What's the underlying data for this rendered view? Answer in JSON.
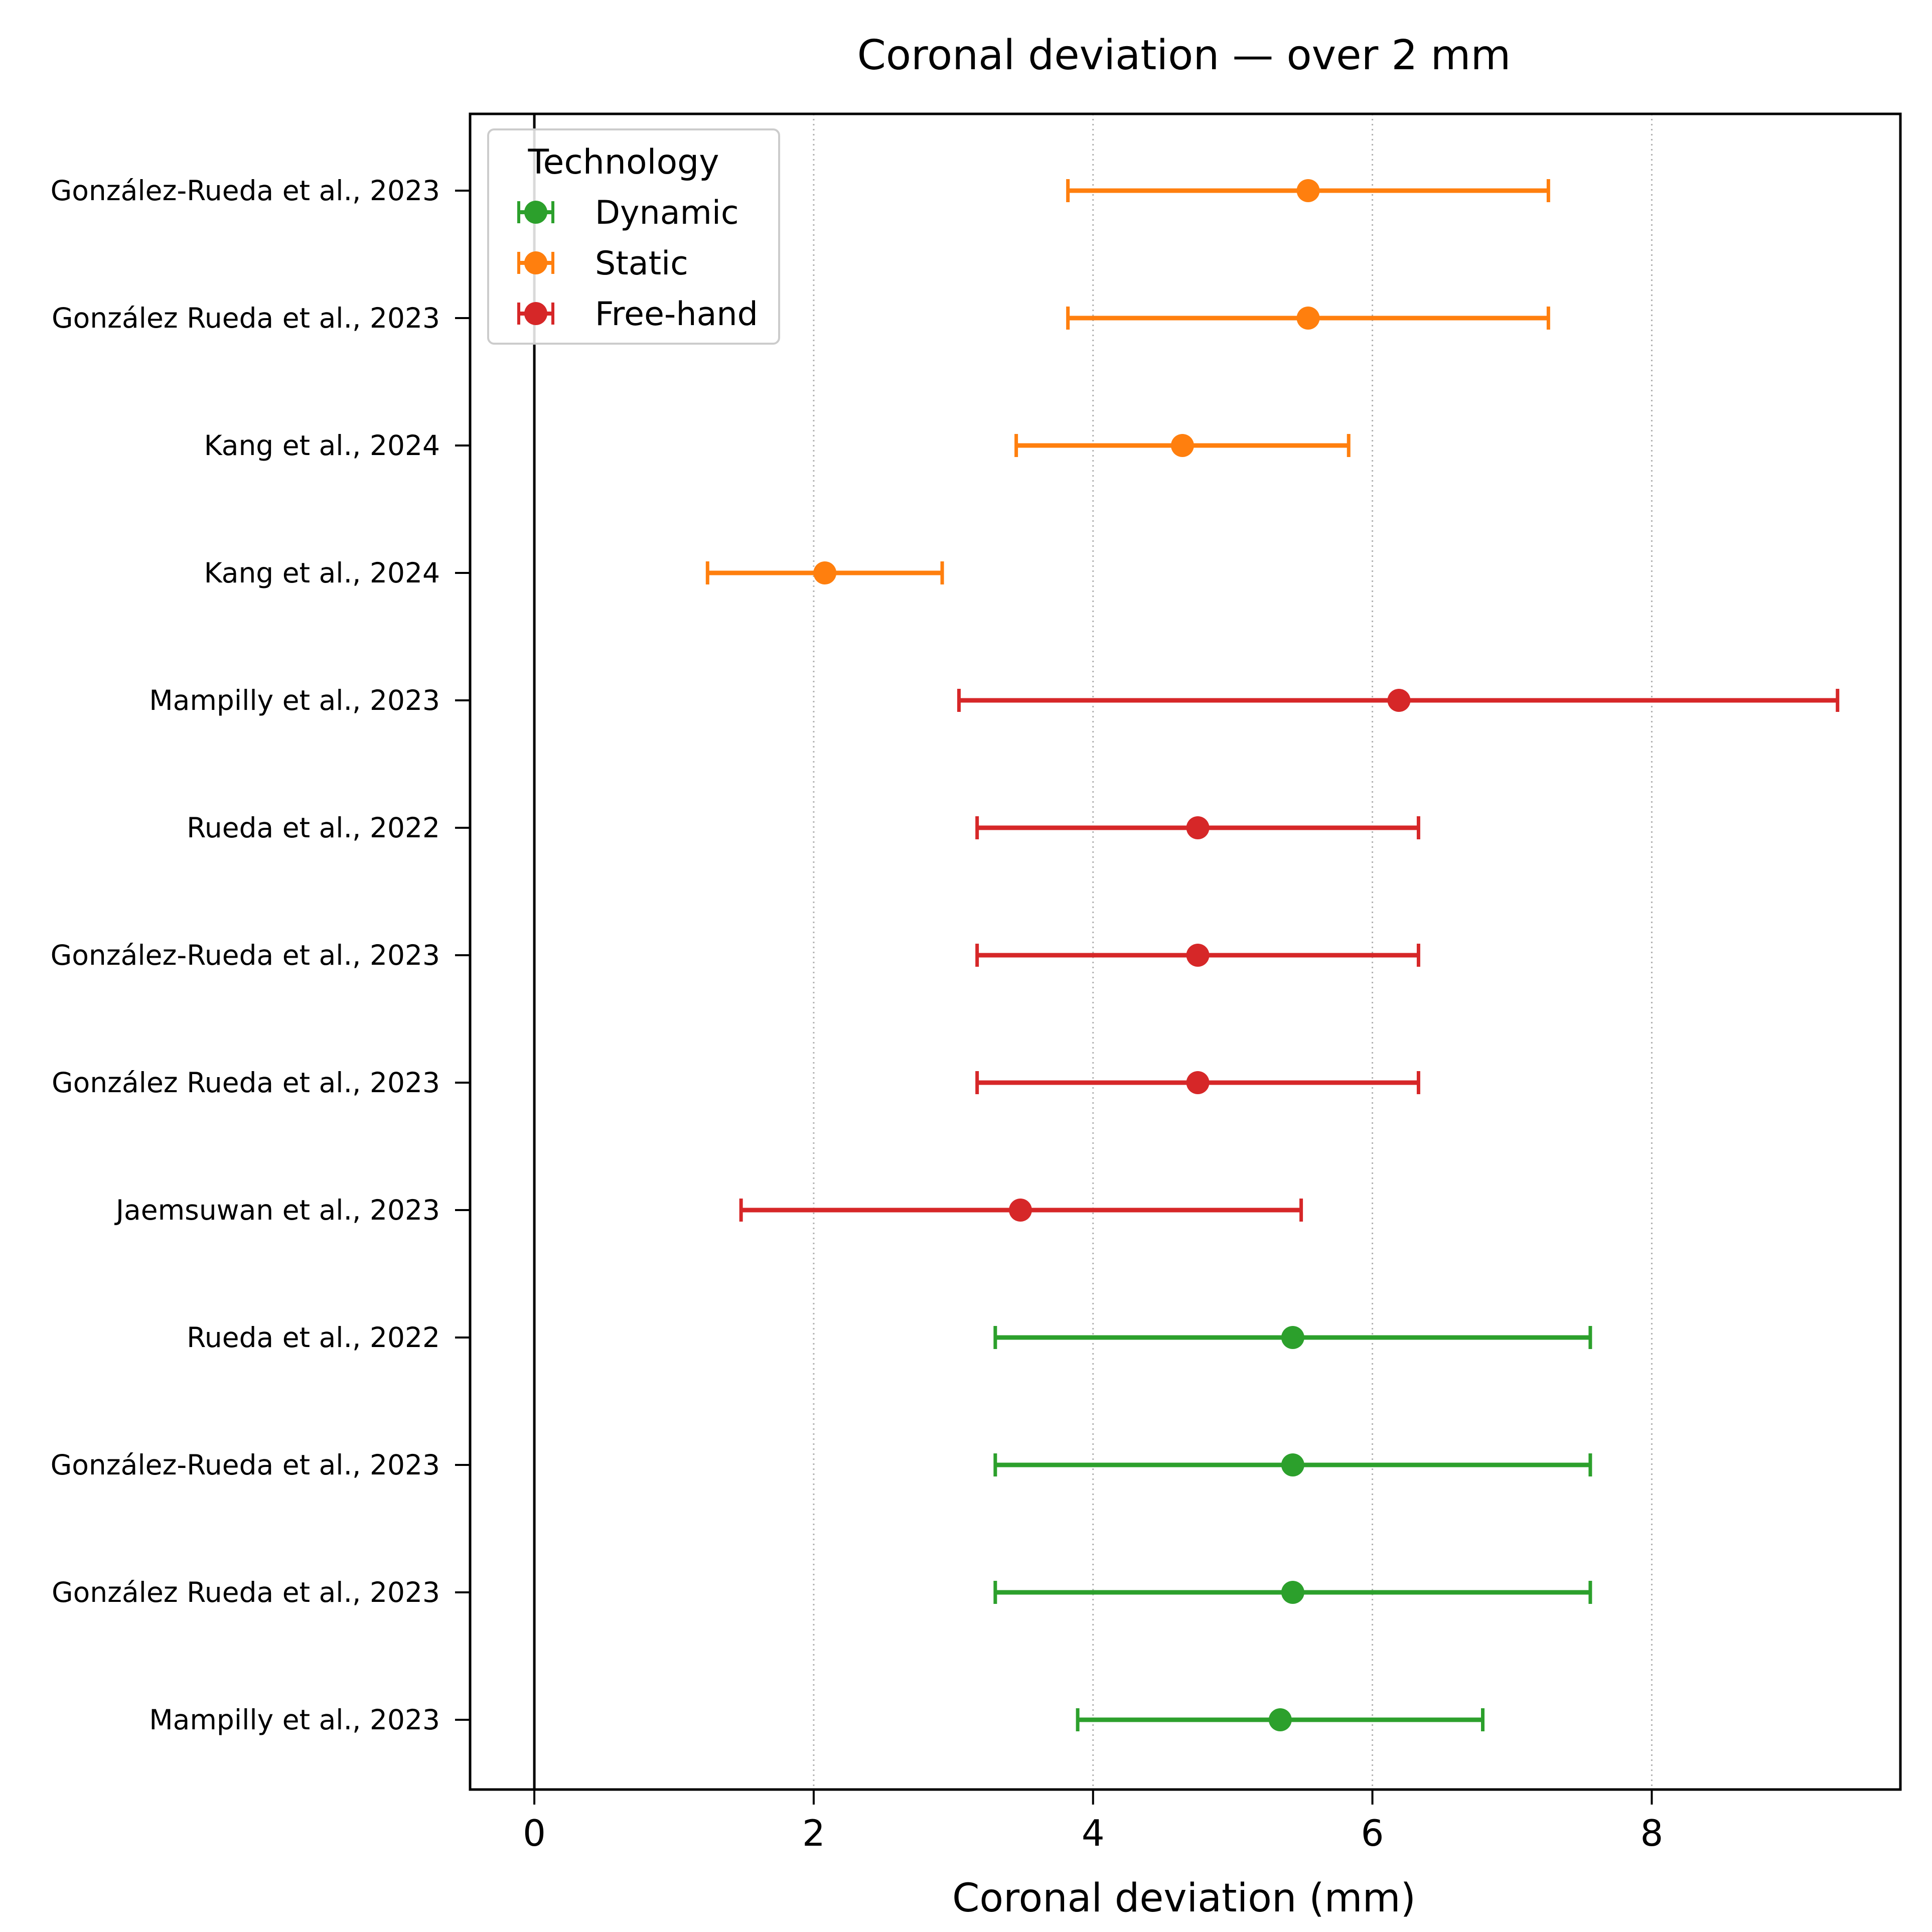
{
  "chart_data": {
    "type": "forest",
    "title": "Coronal deviation — over 2 mm",
    "xlabel": "Coronal deviation (mm)",
    "ylabel": "",
    "xlim": [
      -0.46,
      9.78
    ],
    "xticks": [
      0,
      2,
      4,
      6,
      8
    ],
    "grid": "x-dotted",
    "reference_line_x": 0,
    "legend": {
      "title": "Technology",
      "placement": "top-left",
      "entries": [
        {
          "label": "Dynamic",
          "color": "#2ca02c"
        },
        {
          "label": "Static",
          "color": "#ff7f0e"
        },
        {
          "label": "Free-hand",
          "color": "#d62728"
        }
      ]
    },
    "studies": [
      {
        "label": "González-Rueda et al., 2023",
        "technology": "Static",
        "estimate": 5.54,
        "lower": 3.82,
        "upper": 7.26
      },
      {
        "label": "González Rueda et al., 2023",
        "technology": "Static",
        "estimate": 5.54,
        "lower": 3.82,
        "upper": 7.26
      },
      {
        "label": "Kang et al., 2024",
        "technology": "Static",
        "estimate": 4.64,
        "lower": 3.45,
        "upper": 5.83
      },
      {
        "label": "Kang et al., 2024",
        "technology": "Static",
        "estimate": 2.08,
        "lower": 1.24,
        "upper": 2.92
      },
      {
        "label": "Mampilly et al., 2023",
        "technology": "Free-hand",
        "estimate": 6.19,
        "lower": 3.04,
        "upper": 9.33
      },
      {
        "label": "Rueda et al., 2022",
        "technology": "Free-hand",
        "estimate": 4.75,
        "lower": 3.17,
        "upper": 6.33
      },
      {
        "label": "González-Rueda et al., 2023",
        "technology": "Free-hand",
        "estimate": 4.75,
        "lower": 3.17,
        "upper": 6.33
      },
      {
        "label": "González Rueda et al., 2023",
        "technology": "Free-hand",
        "estimate": 4.75,
        "lower": 3.17,
        "upper": 6.33
      },
      {
        "label": "Jaemsuwan et al., 2023",
        "technology": "Free-hand",
        "estimate": 3.48,
        "lower": 1.48,
        "upper": 5.49
      },
      {
        "label": "Rueda et al., 2022",
        "technology": "Dynamic",
        "estimate": 5.43,
        "lower": 3.3,
        "upper": 7.56
      },
      {
        "label": "González-Rueda et al., 2023",
        "technology": "Dynamic",
        "estimate": 5.43,
        "lower": 3.3,
        "upper": 7.56
      },
      {
        "label": "González Rueda et al., 2023",
        "technology": "Dynamic",
        "estimate": 5.43,
        "lower": 3.3,
        "upper": 7.56
      },
      {
        "label": "Mampilly et al., 2023",
        "technology": "Dynamic",
        "estimate": 5.34,
        "lower": 3.89,
        "upper": 6.79
      }
    ]
  }
}
